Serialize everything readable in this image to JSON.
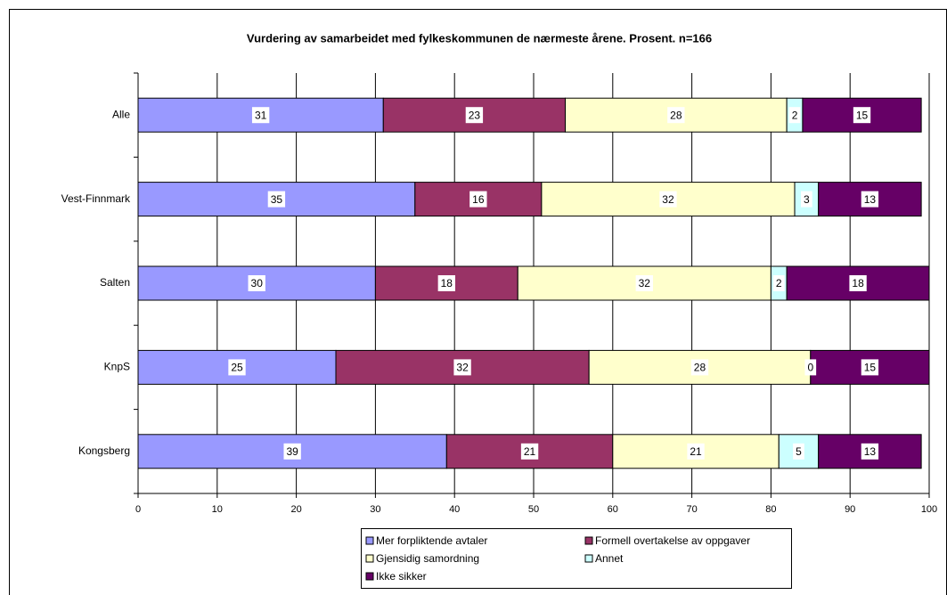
{
  "chart_data": {
    "type": "stacked-barh",
    "title": "Vurdering av samarbeidet med fylkeskommunen de nærmeste årene. Prosent. n=166",
    "categories": [
      "Alle",
      "Vest-Finnmark",
      "Salten",
      "KnpS",
      "Kongsberg"
    ],
    "series": [
      {
        "name": "Mer forpliktende avtaler",
        "color": "#9999ff",
        "values": [
          31,
          35,
          30,
          25,
          39
        ]
      },
      {
        "name": "Formell overtakelse av oppgaver",
        "color": "#993366",
        "values": [
          23,
          16,
          18,
          32,
          21
        ]
      },
      {
        "name": "Gjensidig samordning",
        "color": "#ffffcc",
        "values": [
          28,
          32,
          32,
          28,
          21
        ]
      },
      {
        "name": "Annet",
        "color": "#ccffff",
        "values": [
          2,
          3,
          2,
          0,
          5
        ]
      },
      {
        "name": "Ikke sikker",
        "color": "#660066",
        "values": [
          15,
          13,
          18,
          15,
          13
        ]
      }
    ],
    "xlim": [
      0,
      100
    ],
    "xticks": [
      0,
      10,
      20,
      30,
      40,
      50,
      60,
      70,
      80,
      90,
      100
    ],
    "grid": true,
    "legend": "bottom"
  }
}
